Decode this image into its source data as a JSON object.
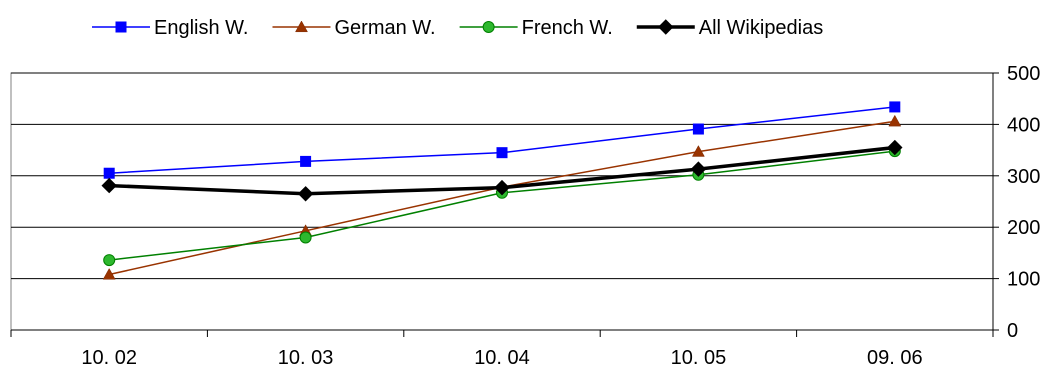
{
  "chart_data": {
    "type": "line",
    "categories": [
      "10. 02",
      "10. 03",
      "10. 04",
      "10. 05",
      "09. 06"
    ],
    "ylim": [
      0,
      500
    ],
    "yticks": [
      0,
      100,
      200,
      300,
      400,
      500
    ],
    "y_axis_side": "right",
    "grid": {
      "horizontal": true,
      "vertical": false
    },
    "legend_position": "top",
    "series": [
      {
        "name": "English W.",
        "values": [
          305,
          328,
          345,
          391,
          434
        ],
        "color": "#0000ff",
        "marker": "square",
        "line_style": "thin"
      },
      {
        "name": "German W.",
        "values": [
          108,
          193,
          278,
          347,
          406
        ],
        "color": "#993300",
        "marker": "triangle",
        "line_style": "thin"
      },
      {
        "name": "French W.",
        "values": [
          136,
          180,
          267,
          302,
          348
        ],
        "color": "#008000",
        "marker": "circle",
        "line_style": "thin"
      },
      {
        "name": "All Wikipedias",
        "values": [
          281,
          265,
          277,
          313,
          355
        ],
        "color": "#000000",
        "marker": "diamond",
        "line_style": "thick"
      }
    ]
  }
}
